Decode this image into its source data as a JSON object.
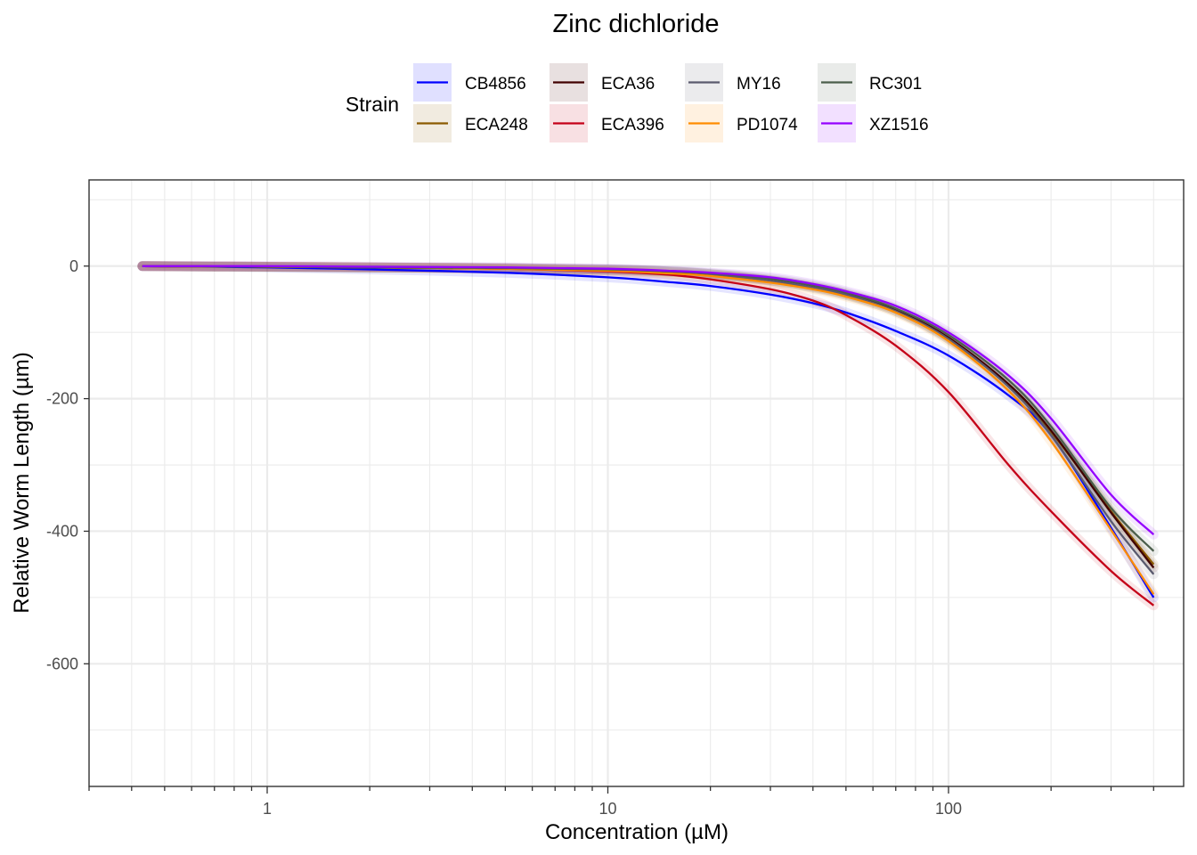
{
  "chart_data": {
    "type": "line",
    "title": "Zinc dichloride",
    "xlabel": "Concentration (µM)",
    "ylabel": "Relative Worm Length (µm)",
    "x_scale": "log10",
    "xlim": [
      0.3,
      490
    ],
    "ylim": [
      -785,
      130
    ],
    "x_tick_labels": [
      {
        "value": 1,
        "label": "1"
      },
      {
        "value": 10,
        "label": "10"
      },
      {
        "value": 100,
        "label": "100"
      }
    ],
    "y_tick_labels": [
      {
        "value": 0,
        "label": "0"
      },
      {
        "value": -200,
        "label": "-200"
      },
      {
        "value": -400,
        "label": "-400"
      },
      {
        "value": -600,
        "label": "-600"
      }
    ],
    "grid": true,
    "legend": {
      "title": "Strain",
      "position": "top",
      "columns": 4
    },
    "x": [
      0.43,
      1,
      2,
      5,
      10,
      15,
      20,
      30,
      40,
      50,
      70,
      100,
      150,
      200,
      300,
      400
    ],
    "series": [
      {
        "name": "CB4856",
        "color": "#0000FF",
        "values": [
          0,
          -2,
          -5,
          -10,
          -17,
          -24,
          -30,
          -43,
          -56,
          -70,
          -98,
          -135,
          -195,
          -255,
          -395,
          -500
        ]
      },
      {
        "name": "ECA248",
        "color": "#8B5A00",
        "values": [
          0,
          -1,
          -2,
          -4,
          -6,
          -9,
          -13,
          -22,
          -33,
          -44,
          -68,
          -110,
          -180,
          -250,
          -370,
          -450
        ]
      },
      {
        "name": "ECA36",
        "color": "#400000",
        "values": [
          0,
          -1,
          -2,
          -3,
          -5,
          -8,
          -12,
          -21,
          -31,
          -42,
          -66,
          -108,
          -178,
          -248,
          -372,
          -455
        ]
      },
      {
        "name": "ECA396",
        "color": "#C40018",
        "values": [
          0,
          -1,
          -2,
          -4,
          -8,
          -13,
          -20,
          -35,
          -52,
          -74,
          -120,
          -190,
          -300,
          -370,
          -460,
          -512
        ]
      },
      {
        "name": "MY16",
        "color": "#5A5A6E",
        "values": [
          0,
          -1,
          -2,
          -3,
          -5,
          -8,
          -12,
          -22,
          -32,
          -43,
          -68,
          -110,
          -182,
          -255,
          -385,
          -465
        ]
      },
      {
        "name": "PD1074",
        "color": "#FF8C00",
        "values": [
          0,
          -1,
          -2,
          -4,
          -7,
          -11,
          -15,
          -25,
          -35,
          -46,
          -70,
          -113,
          -188,
          -264,
          -398,
          -495
        ]
      },
      {
        "name": "RC301",
        "color": "#4B5E4B",
        "values": [
          0,
          -1,
          -2,
          -3,
          -5,
          -8,
          -11,
          -19,
          -29,
          -40,
          -64,
          -104,
          -172,
          -242,
          -365,
          -430
        ]
      },
      {
        "name": "XZ1516",
        "color": "#9400FF",
        "values": [
          0,
          0,
          -1,
          -2,
          -4,
          -7,
          -10,
          -17,
          -27,
          -38,
          -60,
          -100,
          -165,
          -230,
          -345,
          -405
        ]
      }
    ]
  }
}
